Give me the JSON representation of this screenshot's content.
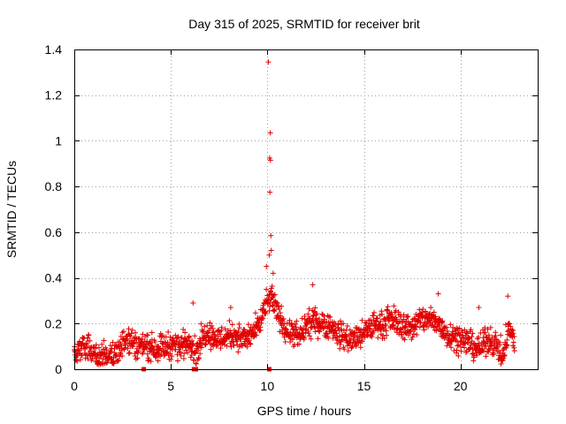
{
  "colors": {
    "series": "#e00000",
    "grid": "#a0a0a0",
    "axis": "#000000"
  },
  "chart_data": {
    "type": "scatter",
    "title": "Day 315 of 2025, SRMTID for receiver brit",
    "xlabel": "GPS time / hours",
    "ylabel": "SRMTID / TECUs",
    "xlim": [
      0,
      24
    ],
    "ylim": [
      0,
      1.4
    ],
    "xticks": [
      0,
      5,
      10,
      15,
      20
    ],
    "xtick_labels": [
      "0",
      "5",
      "10",
      "15",
      "20"
    ],
    "yticks": [
      0,
      0.2,
      0.4,
      0.6,
      0.8,
      1,
      1.2,
      1.4
    ],
    "ytick_labels": [
      "0",
      "0.2",
      "0.4",
      "0.6",
      "0.8",
      "1",
      "1.2",
      "1.4"
    ],
    "grid": true,
    "marker": "plus",
    "series": [
      {
        "name": "SRMTID",
        "color": "#e00000",
        "profile_x": [
          0,
          0.3,
          0.6,
          0.9,
          1.2,
          1.5,
          1.8,
          2.1,
          2.4,
          2.7,
          3.0,
          3.3,
          3.6,
          3.9,
          4.2,
          4.5,
          4.8,
          5.1,
          5.4,
          5.7,
          6.0,
          6.3,
          6.6,
          6.9,
          7.2,
          7.5,
          7.8,
          8.1,
          8.4,
          8.7,
          9.0,
          9.3,
          9.6,
          9.9,
          10.2,
          10.5,
          10.8,
          11.1,
          11.4,
          11.7,
          12.0,
          12.3,
          12.6,
          12.9,
          13.2,
          13.5,
          13.8,
          14.1,
          14.4,
          14.7,
          15.0,
          15.3,
          15.6,
          15.9,
          16.2,
          16.5,
          16.8,
          17.1,
          17.4,
          17.7,
          18.0,
          18.3,
          18.6,
          18.9,
          19.2,
          19.5,
          19.8,
          20.1,
          20.4,
          20.7,
          21.0,
          21.3,
          21.6,
          21.9,
          22.2,
          22.5,
          22.8
        ],
        "profile_y": [
          0.09,
          0.08,
          0.1,
          0.08,
          0.06,
          0.05,
          0.06,
          0.07,
          0.09,
          0.13,
          0.12,
          0.1,
          0.11,
          0.1,
          0.09,
          0.1,
          0.1,
          0.11,
          0.1,
          0.11,
          0.13,
          0.07,
          0.13,
          0.17,
          0.14,
          0.13,
          0.14,
          0.15,
          0.15,
          0.13,
          0.14,
          0.16,
          0.2,
          0.27,
          0.32,
          0.25,
          0.2,
          0.16,
          0.15,
          0.14,
          0.19,
          0.2,
          0.21,
          0.2,
          0.19,
          0.17,
          0.15,
          0.14,
          0.13,
          0.14,
          0.15,
          0.18,
          0.2,
          0.19,
          0.21,
          0.22,
          0.2,
          0.19,
          0.18,
          0.2,
          0.22,
          0.22,
          0.21,
          0.2,
          0.16,
          0.15,
          0.14,
          0.13,
          0.12,
          0.1,
          0.09,
          0.12,
          0.13,
          0.1,
          0.06,
          0.18,
          0.12
        ],
        "spread": 0.035,
        "spikes": [
          {
            "x": 10.05,
            "y": 1.345
          },
          {
            "x": 10.15,
            "y": 1.035
          },
          {
            "x": 10.12,
            "y": 0.925
          },
          {
            "x": 10.16,
            "y": 0.915
          },
          {
            "x": 10.13,
            "y": 0.775
          },
          {
            "x": 10.18,
            "y": 0.585
          },
          {
            "x": 10.2,
            "y": 0.52
          },
          {
            "x": 10.1,
            "y": 0.5
          },
          {
            "x": 9.95,
            "y": 0.45
          },
          {
            "x": 10.3,
            "y": 0.42
          },
          {
            "x": 12.35,
            "y": 0.37
          },
          {
            "x": 22.45,
            "y": 0.32
          },
          {
            "x": 18.85,
            "y": 0.33
          },
          {
            "x": 6.15,
            "y": 0.29
          },
          {
            "x": 8.1,
            "y": 0.27
          },
          {
            "x": 20.95,
            "y": 0.27
          }
        ],
        "zero_markers_x": [
          3.6,
          6.2,
          6.3,
          10.1
        ]
      }
    ]
  }
}
